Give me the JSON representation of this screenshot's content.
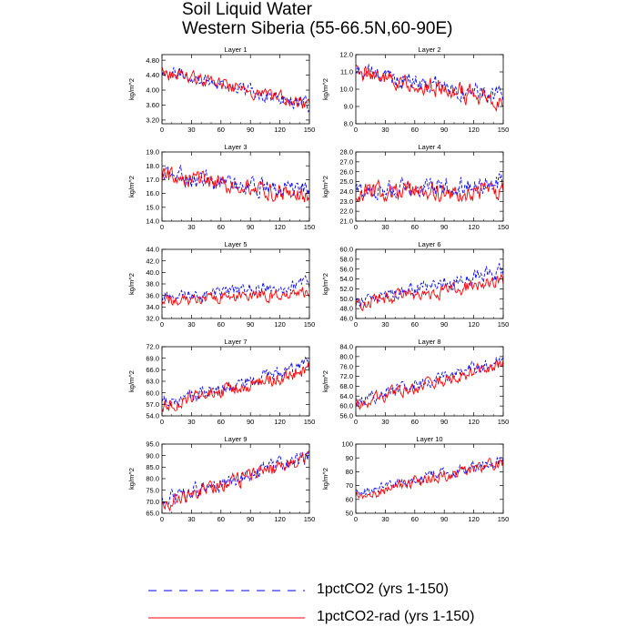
{
  "title_line1": "Soil Liquid Water",
  "title_line2": "Western Siberia (55-66.5N,60-90E)",
  "legend": [
    {
      "label": "1pctCO2 (yrs 1-150)",
      "color": "#0000ff",
      "dash": true
    },
    {
      "label": "1pctCO2-rad (yrs 1-150)",
      "color": "#ff0000",
      "dash": false
    }
  ],
  "chart_data": [
    {
      "type": "line",
      "title": "Layer 1",
      "xlabel": "",
      "ylabel": "kg/m^2",
      "xlim": [
        0,
        150
      ],
      "ylim": [
        3.1,
        4.95
      ],
      "xticks": [
        0,
        30,
        60,
        90,
        120,
        150
      ],
      "yticks": [
        "3.20",
        "3.60",
        "4.00",
        "4.40",
        "4.80"
      ],
      "series": [
        {
          "name": "1pctCO2 (yrs 1-150)",
          "start": 4.55,
          "end": 3.6,
          "noise": 0.17
        },
        {
          "name": "1pctCO2-rad (yrs 1-150)",
          "start": 4.5,
          "end": 3.6,
          "noise": 0.17
        }
      ]
    },
    {
      "type": "line",
      "title": "Layer 2",
      "xlabel": "",
      "ylabel": "kg/m^2",
      "xlim": [
        0,
        150
      ],
      "ylim": [
        8.0,
        12.0
      ],
      "xticks": [
        0,
        30,
        60,
        90,
        120,
        150
      ],
      "yticks": [
        "8.0",
        "9.0",
        "10.0",
        "11.0",
        "12.0"
      ],
      "series": [
        {
          "name": "1pctCO2 (yrs 1-150)",
          "start": 11.1,
          "end": 9.5,
          "noise": 0.5
        },
        {
          "name": "1pctCO2-rad (yrs 1-150)",
          "start": 11.0,
          "end": 9.3,
          "noise": 0.5
        }
      ]
    },
    {
      "type": "line",
      "title": "Layer 3",
      "xlabel": "",
      "ylabel": "kg/m^2",
      "xlim": [
        0,
        150
      ],
      "ylim": [
        14.0,
        19.0
      ],
      "xticks": [
        0,
        30,
        60,
        90,
        120,
        150
      ],
      "yticks": [
        "14.0",
        "15.0",
        "16.0",
        "17.0",
        "18.0",
        "19.0"
      ],
      "series": [
        {
          "name": "1pctCO2 (yrs 1-150)",
          "start": 17.4,
          "end": 16.0,
          "noise": 0.6
        },
        {
          "name": "1pctCO2-rad (yrs 1-150)",
          "start": 17.3,
          "end": 15.8,
          "noise": 0.6
        }
      ]
    },
    {
      "type": "line",
      "title": "Layer 4",
      "xlabel": "",
      "ylabel": "kg/m^2",
      "xlim": [
        0,
        150
      ],
      "ylim": [
        21.0,
        28.0
      ],
      "xticks": [
        0,
        30,
        60,
        90,
        120,
        150
      ],
      "yticks": [
        "21.0",
        "22.0",
        "23.0",
        "24.0",
        "25.0",
        "26.0",
        "27.0",
        "28.0"
      ],
      "series": [
        {
          "name": "1pctCO2 (yrs 1-150)",
          "start": 24.0,
          "end": 24.8,
          "noise": 0.9
        },
        {
          "name": "1pctCO2-rad (yrs 1-150)",
          "start": 23.9,
          "end": 24.0,
          "noise": 0.9
        }
      ]
    },
    {
      "type": "line",
      "title": "Layer 5",
      "xlabel": "",
      "ylabel": "kg/m^2",
      "xlim": [
        0,
        150
      ],
      "ylim": [
        32.0,
        44.0
      ],
      "xticks": [
        0,
        30,
        60,
        90,
        120,
        150
      ],
      "yticks": [
        "32.0",
        "34.0",
        "36.0",
        "38.0",
        "40.0",
        "42.0",
        "44.0"
      ],
      "series": [
        {
          "name": "1pctCO2 (yrs 1-150)",
          "start": 35.5,
          "end": 38.0,
          "noise": 1.0
        },
        {
          "name": "1pctCO2-rad (yrs 1-150)",
          "start": 35.0,
          "end": 36.5,
          "noise": 1.0
        }
      ]
    },
    {
      "type": "line",
      "title": "Layer 6",
      "xlabel": "",
      "ylabel": "kg/m^2",
      "xlim": [
        0,
        150
      ],
      "ylim": [
        46.0,
        60.0
      ],
      "xticks": [
        0,
        30,
        60,
        90,
        120,
        150
      ],
      "yticks": [
        "46.0",
        "48.0",
        "50.0",
        "52.0",
        "54.0",
        "56.0",
        "58.0",
        "60.0"
      ],
      "series": [
        {
          "name": "1pctCO2 (yrs 1-150)",
          "start": 49.5,
          "end": 55.5,
          "noise": 1.3
        },
        {
          "name": "1pctCO2-rad (yrs 1-150)",
          "start": 49.0,
          "end": 53.5,
          "noise": 1.3
        }
      ]
    },
    {
      "type": "line",
      "title": "Layer 7",
      "xlabel": "",
      "ylabel": "kg/m^2",
      "xlim": [
        0,
        150
      ],
      "ylim": [
        54.0,
        72.0
      ],
      "xticks": [
        0,
        30,
        60,
        90,
        120,
        150
      ],
      "yticks": [
        "54.0",
        "57.0",
        "60.0",
        "63.0",
        "66.0",
        "69.0",
        "72.0"
      ],
      "series": [
        {
          "name": "1pctCO2 (yrs 1-150)",
          "start": 57.0,
          "end": 67.0,
          "noise": 1.8
        },
        {
          "name": "1pctCO2-rad (yrs 1-150)",
          "start": 56.5,
          "end": 66.0,
          "noise": 1.8
        }
      ]
    },
    {
      "type": "line",
      "title": "Layer 8",
      "xlabel": "",
      "ylabel": "kg/m^2",
      "xlim": [
        0,
        150
      ],
      "ylim": [
        56.0,
        84.0
      ],
      "xticks": [
        0,
        30,
        60,
        90,
        120,
        150
      ],
      "yticks": [
        "56.0",
        "60.0",
        "64.0",
        "68.0",
        "72.0",
        "76.0",
        "80.0",
        "84.0"
      ],
      "series": [
        {
          "name": "1pctCO2 (yrs 1-150)",
          "start": 62.0,
          "end": 78.5,
          "noise": 2.5
        },
        {
          "name": "1pctCO2-rad (yrs 1-150)",
          "start": 61.0,
          "end": 77.0,
          "noise": 2.5
        }
      ]
    },
    {
      "type": "line",
      "title": "Layer 9",
      "xlabel": "",
      "ylabel": "kg/m^2",
      "xlim": [
        0,
        150
      ],
      "ylim": [
        65.0,
        95.0
      ],
      "xticks": [
        0,
        30,
        60,
        90,
        120,
        150
      ],
      "yticks": [
        "65.0",
        "70.0",
        "75.0",
        "80.0",
        "85.0",
        "90.0",
        "95.0"
      ],
      "series": [
        {
          "name": "1pctCO2 (yrs 1-150)",
          "start": 70.0,
          "end": 90.0,
          "noise": 3.0
        },
        {
          "name": "1pctCO2-rad (yrs 1-150)",
          "start": 69.0,
          "end": 89.0,
          "noise": 3.0
        }
      ]
    },
    {
      "type": "line",
      "title": "Layer 10",
      "xlabel": "",
      "ylabel": "kg/m^2",
      "xlim": [
        0,
        150
      ],
      "ylim": [
        50,
        100
      ],
      "xticks": [
        0,
        30,
        60,
        90,
        120,
        150
      ],
      "yticks": [
        "50",
        "60",
        "70",
        "80",
        "90",
        "100"
      ],
      "series": [
        {
          "name": "1pctCO2 (yrs 1-150)",
          "start": 64.0,
          "end": 88.0,
          "noise": 4.0
        },
        {
          "name": "1pctCO2-rad (yrs 1-150)",
          "start": 62.0,
          "end": 87.0,
          "noise": 4.0
        }
      ]
    }
  ]
}
